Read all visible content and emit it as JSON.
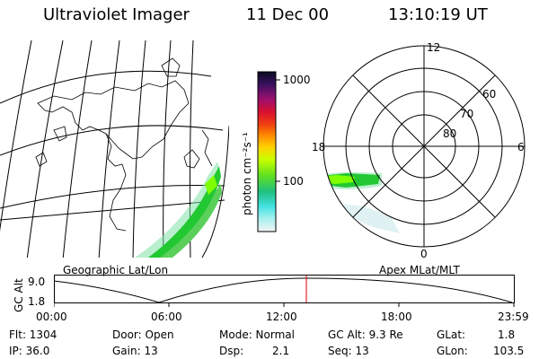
{
  "header": {
    "instrument": "Ultraviolet Imager",
    "date": "11 Dec 00",
    "time": "13:10:19 UT"
  },
  "colorbar": {
    "unit_label": "photon cm⁻²s⁻¹",
    "ticks": [
      "1000",
      "100"
    ]
  },
  "polar_plot": {
    "mlt_labels": [
      "12",
      "18",
      "6",
      "0"
    ],
    "mlat_labels": [
      "60",
      "70",
      "80"
    ]
  },
  "map_captions": {
    "left": "Geographic Lat/Lon",
    "right": "Apex MLat/MLT"
  },
  "orbit_plot": {
    "ylabel": "GC Alt",
    "yticks": [
      "9.0",
      "1.8"
    ],
    "xticks": [
      "00:00",
      "06:00",
      "12:00",
      "18:00",
      "23:59"
    ],
    "marker_time": "13:10:19",
    "marker_color": "#e00000"
  },
  "info": {
    "row1": {
      "flt": "Flt: 1304",
      "door": "Door: Open",
      "mode": "Mode: Normal",
      "gcalt": "GC Alt: 9.3 Re",
      "glat_label": "GLat:",
      "glat_val": "1.8"
    },
    "row2": {
      "ip": "IP: 36.0",
      "gain": "Gain: 13",
      "dsp_label": "Dsp:",
      "dsp_val": "2.1",
      "seq": "Seq: 13",
      "glon_label": "GLon:",
      "glon_val": "103.5"
    }
  }
}
